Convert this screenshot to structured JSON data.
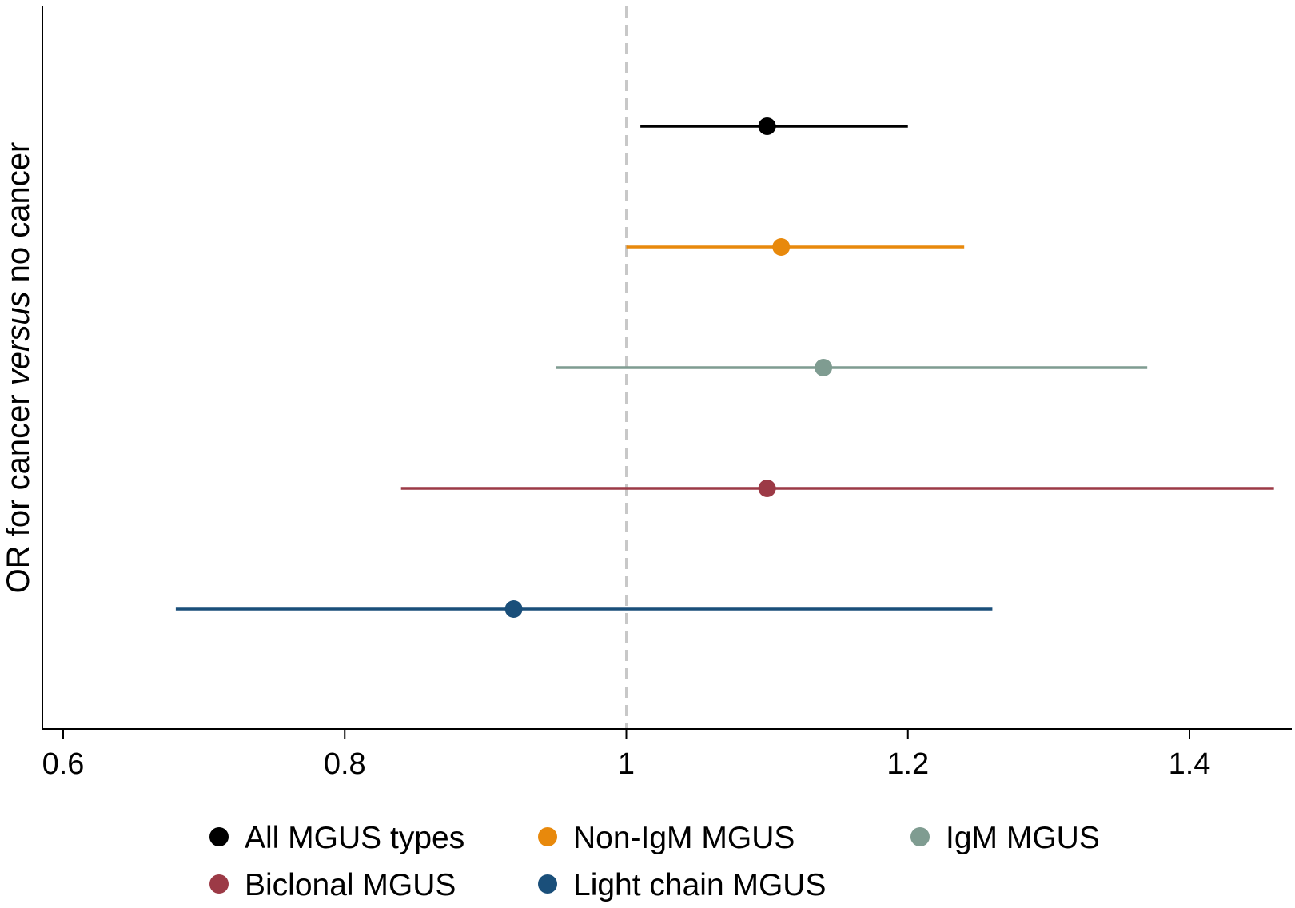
{
  "chart_data": {
    "type": "forest",
    "ylabel_parts": [
      "OR for cancer ",
      "versus",
      " no cancer"
    ],
    "xlim": [
      0.585,
      1.47
    ],
    "xticks": [
      0.6,
      0.8,
      1,
      1.2,
      1.4
    ],
    "xtick_labels": [
      "0.6",
      "0.8",
      "1",
      "1.2",
      "1.4"
    ],
    "reference_line": 1,
    "series": [
      {
        "name": "All MGUS types",
        "or": 1.1,
        "lower": 1.01,
        "upper": 1.2,
        "color": "#000000"
      },
      {
        "name": "Non-IgM MGUS",
        "or": 1.11,
        "lower": 1.0,
        "upper": 1.24,
        "color": "#e8890c"
      },
      {
        "name": "IgM MGUS",
        "or": 1.14,
        "lower": 0.95,
        "upper": 1.37,
        "color": "#7f9c91"
      },
      {
        "name": "Biclonal MGUS",
        "or": 1.1,
        "lower": 0.84,
        "upper": 1.46,
        "color": "#9c3a46"
      },
      {
        "name": "Light chain MGUS",
        "or": 0.92,
        "lower": 0.68,
        "upper": 1.26,
        "color": "#1a4f7a"
      }
    ],
    "legend_position": "bottom"
  }
}
